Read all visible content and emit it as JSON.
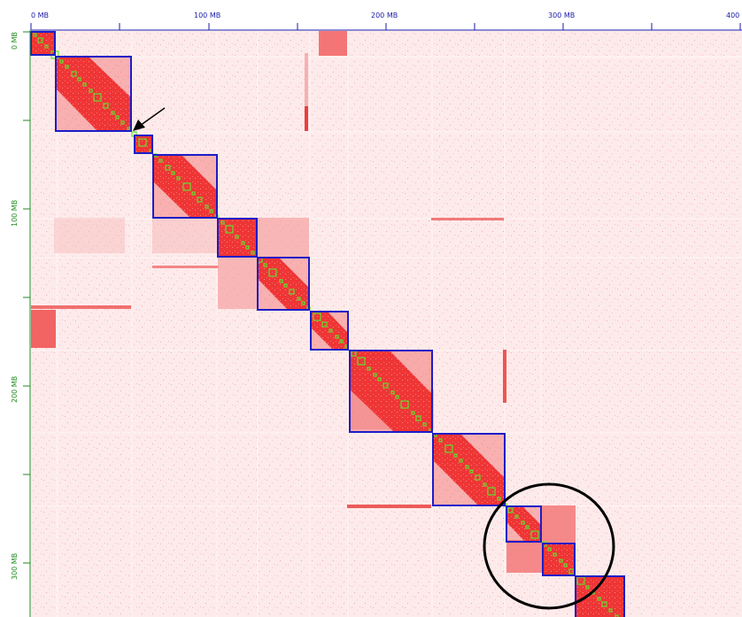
{
  "axes": {
    "top": {
      "color": "#1a1aa8",
      "labels": [
        "0 MB",
        "100 MB",
        "200 MB",
        "300 MB",
        "400"
      ]
    },
    "left": {
      "color": "#1f8a1f",
      "labels": [
        "0 MB",
        "100 MB",
        "200 MB",
        "300 MB"
      ]
    }
  },
  "colors": {
    "background": "#fdeaea",
    "stripe_light": "#fef4f4",
    "stripe_mid": "#f9c9c9",
    "domain_red": "#ec2b2b",
    "block_outline": "#1c1cc8",
    "contig_square": "#5ee02c",
    "annotation": "#000000"
  },
  "annotations": {
    "arrow": "arrow-icon",
    "circle": "highlight-circle"
  }
}
